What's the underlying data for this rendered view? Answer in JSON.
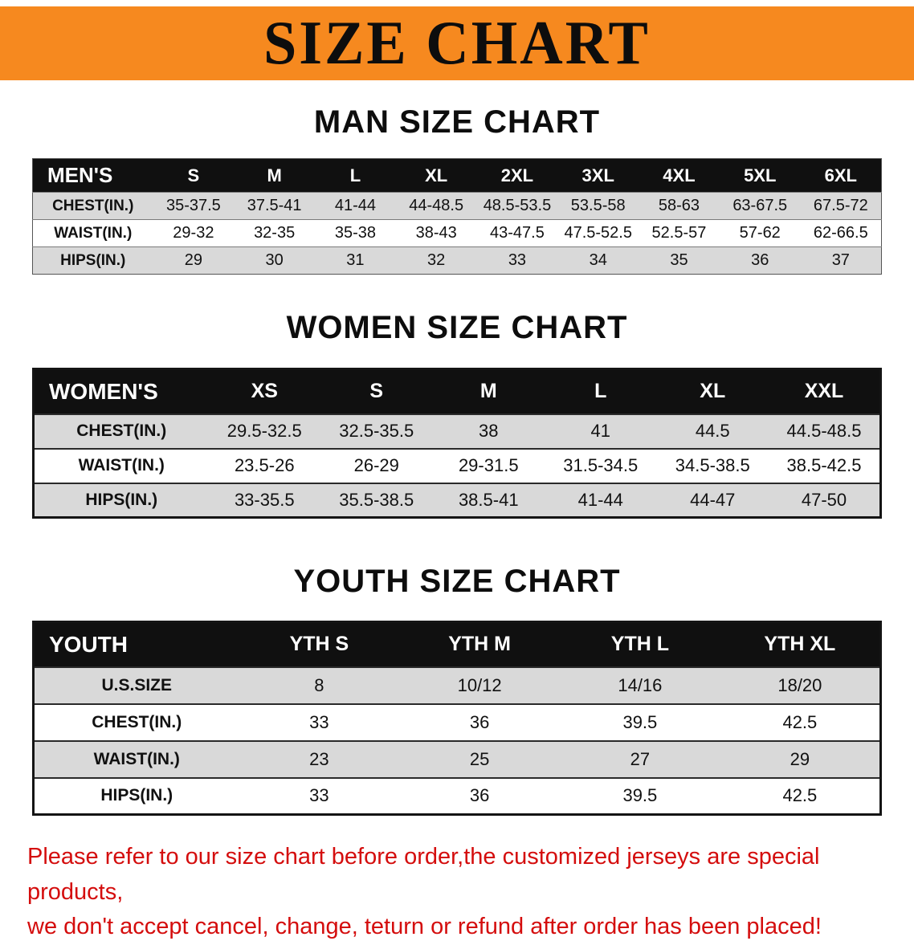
{
  "banner": {
    "title": "SIZE CHART"
  },
  "colors": {
    "banner_bg": "#f6891f",
    "banner_text": "#0d0d0d",
    "table_header_bg": "#101010",
    "table_header_text": "#ffffff",
    "row_shade": "#d9d9d9",
    "footer_text": "#d40d0d"
  },
  "chart_data": [
    {
      "type": "table",
      "title": "MAN SIZE CHART",
      "header_label": "MEN'S",
      "columns": [
        "S",
        "M",
        "L",
        "XL",
        "2XL",
        "3XL",
        "4XL",
        "5XL",
        "6XL"
      ],
      "rows": [
        {
          "label": "CHEST(IN.)",
          "values": [
            "35-37.5",
            "37.5-41",
            "41-44",
            "44-48.5",
            "48.5-53.5",
            "53.5-58",
            "58-63",
            "63-67.5",
            "67.5-72"
          ]
        },
        {
          "label": "WAIST(IN.)",
          "values": [
            "29-32",
            "32-35",
            "35-38",
            "38-43",
            "43-47.5",
            "47.5-52.5",
            "52.5-57",
            "57-62",
            "62-66.5"
          ]
        },
        {
          "label": "HIPS(IN.)",
          "values": [
            "29",
            "30",
            "31",
            "32",
            "33",
            "34",
            "35",
            "36",
            "37"
          ]
        }
      ]
    },
    {
      "type": "table",
      "title": "WOMEN SIZE CHART",
      "header_label": "WOMEN'S",
      "columns": [
        "XS",
        "S",
        "M",
        "L",
        "XL",
        "XXL"
      ],
      "rows": [
        {
          "label": "CHEST(IN.)",
          "values": [
            "29.5-32.5",
            "32.5-35.5",
            "38",
            "41",
            "44.5",
            "44.5-48.5"
          ]
        },
        {
          "label": "WAIST(IN.)",
          "values": [
            "23.5-26",
            "26-29",
            "29-31.5",
            "31.5-34.5",
            "34.5-38.5",
            "38.5-42.5"
          ]
        },
        {
          "label": "HIPS(IN.)",
          "values": [
            "33-35.5",
            "35.5-38.5",
            "38.5-41",
            "41-44",
            "44-47",
            "47-50"
          ]
        }
      ]
    },
    {
      "type": "table",
      "title": "YOUTH SIZE CHART",
      "header_label": "YOUTH",
      "columns": [
        "YTH S",
        "YTH M",
        "YTH L",
        "YTH XL"
      ],
      "rows": [
        {
          "label": "U.S.SIZE",
          "values": [
            "8",
            "10/12",
            "14/16",
            "18/20"
          ]
        },
        {
          "label": "CHEST(IN.)",
          "values": [
            "33",
            "36",
            "39.5",
            "42.5"
          ]
        },
        {
          "label": "WAIST(IN.)",
          "values": [
            "23",
            "25",
            "27",
            "29"
          ]
        },
        {
          "label": "HIPS(IN.)",
          "values": [
            "33",
            "36",
            "39.5",
            "42.5"
          ]
        }
      ]
    }
  ],
  "footer": {
    "lines": [
      "Please refer to our size chart before order,the customized jerseys are special products,",
      "we don't accept cancel, change, teturn or refund after order has been placed!"
    ]
  }
}
